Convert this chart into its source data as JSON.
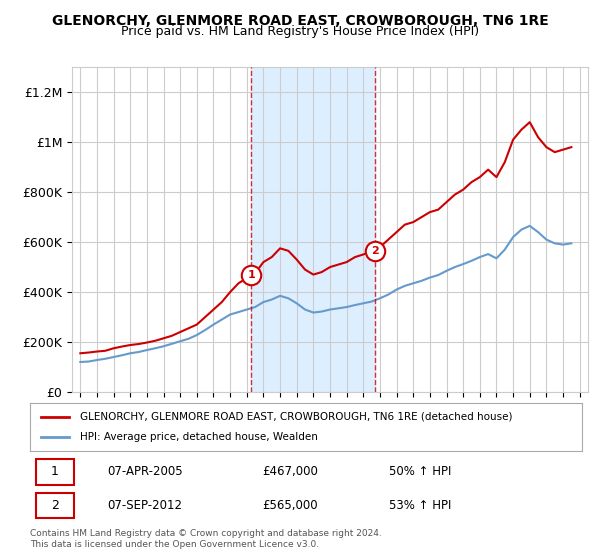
{
  "title": "GLENORCHY, GLENMORE ROAD EAST, CROWBOROUGH, TN6 1RE",
  "subtitle": "Price paid vs. HM Land Registry's House Price Index (HPI)",
  "legend_red": "GLENORCHY, GLENMORE ROAD EAST, CROWBOROUGH, TN6 1RE (detached house)",
  "legend_blue": "HPI: Average price, detached house, Wealden",
  "transaction1": {
    "label": "1",
    "date": "07-APR-2005",
    "price": "£467,000",
    "hpi": "50% ↑ HPI",
    "year": 2005.27
  },
  "transaction2": {
    "label": "2",
    "date": "07-SEP-2012",
    "price": "£565,000",
    "hpi": "53% ↑ HPI",
    "year": 2012.69
  },
  "ylim": [
    0,
    1300000
  ],
  "xlim": [
    1994.5,
    2025.5
  ],
  "yticks": [
    0,
    200000,
    400000,
    600000,
    800000,
    1000000,
    1200000
  ],
  "ytick_labels": [
    "£0",
    "£200K",
    "£400K",
    "£600K",
    "£800K",
    "£1M",
    "£1.2M"
  ],
  "background_color": "#ffffff",
  "plot_bg": "#ffffff",
  "red_color": "#cc0000",
  "blue_color": "#6699cc",
  "shade_color": "#ddeeff",
  "footer": "Contains HM Land Registry data © Crown copyright and database right 2024.\nThis data is licensed under the Open Government Licence v3.0.",
  "red_line": {
    "years": [
      1995,
      1995.5,
      1996,
      1996.5,
      1997,
      1997.5,
      1998,
      1998.5,
      1999,
      1999.5,
      2000,
      2000.5,
      2001,
      2001.5,
      2002,
      2002.5,
      2003,
      2003.5,
      2004,
      2004.5,
      2005.27,
      2005.5,
      2006,
      2006.5,
      2007,
      2007.5,
      2008,
      2008.5,
      2009,
      2009.5,
      2010,
      2010.5,
      2011,
      2011.5,
      2012.69,
      2013,
      2013.5,
      2014,
      2014.5,
      2015,
      2015.5,
      2016,
      2016.5,
      2017,
      2017.5,
      2018,
      2018.5,
      2019,
      2019.5,
      2020,
      2020.5,
      2021,
      2021.5,
      2022,
      2022.5,
      2023,
      2023.5,
      2024,
      2024.5
    ],
    "values": [
      155000,
      158000,
      162000,
      165000,
      175000,
      182000,
      188000,
      192000,
      198000,
      205000,
      215000,
      225000,
      240000,
      255000,
      270000,
      300000,
      330000,
      360000,
      400000,
      435000,
      467000,
      475000,
      520000,
      540000,
      575000,
      565000,
      530000,
      490000,
      470000,
      480000,
      500000,
      510000,
      520000,
      540000,
      565000,
      580000,
      610000,
      640000,
      670000,
      680000,
      700000,
      720000,
      730000,
      760000,
      790000,
      810000,
      840000,
      860000,
      890000,
      860000,
      920000,
      1010000,
      1050000,
      1080000,
      1020000,
      980000,
      960000,
      970000,
      980000
    ]
  },
  "blue_line": {
    "years": [
      1995,
      1995.5,
      1996,
      1996.5,
      1997,
      1997.5,
      1998,
      1998.5,
      1999,
      1999.5,
      2000,
      2000.5,
      2001,
      2001.5,
      2002,
      2002.5,
      2003,
      2003.5,
      2004,
      2004.5,
      2005,
      2005.5,
      2006,
      2006.5,
      2007,
      2007.5,
      2008,
      2008.5,
      2009,
      2009.5,
      2010,
      2010.5,
      2011,
      2011.5,
      2012,
      2012.5,
      2013,
      2013.5,
      2014,
      2014.5,
      2015,
      2015.5,
      2016,
      2016.5,
      2017,
      2017.5,
      2018,
      2018.5,
      2019,
      2019.5,
      2020,
      2020.5,
      2021,
      2021.5,
      2022,
      2022.5,
      2023,
      2023.5,
      2024,
      2024.5
    ],
    "values": [
      120000,
      122000,
      128000,
      133000,
      140000,
      147000,
      155000,
      160000,
      168000,
      175000,
      183000,
      193000,
      203000,
      213000,
      228000,
      248000,
      270000,
      290000,
      310000,
      320000,
      330000,
      340000,
      360000,
      370000,
      385000,
      375000,
      355000,
      330000,
      318000,
      322000,
      330000,
      335000,
      340000,
      348000,
      355000,
      362000,
      375000,
      390000,
      410000,
      425000,
      435000,
      445000,
      458000,
      468000,
      485000,
      500000,
      512000,
      525000,
      540000,
      552000,
      535000,
      570000,
      620000,
      650000,
      665000,
      640000,
      610000,
      595000,
      590000,
      595000
    ]
  }
}
